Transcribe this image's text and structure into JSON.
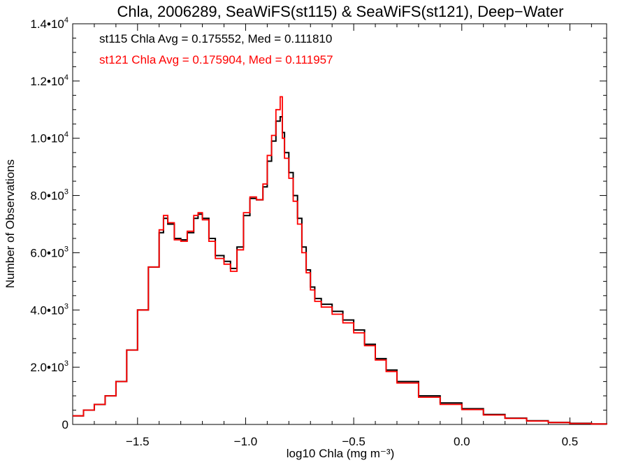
{
  "chart_data": {
    "type": "line",
    "title": "Chla, 2006289, SeaWiFS(st115) & SeaWiFS(st121), Deep−Water",
    "xlabel": "log10 Chla (mg m⁻³)",
    "ylabel": "Number of Observations",
    "xlim": [
      -1.8,
      0.67
    ],
    "ylim": [
      0,
      14000
    ],
    "x_ticks": [
      {
        "value": -1.5,
        "label": "−1.5"
      },
      {
        "value": -1.0,
        "label": "−1.0"
      },
      {
        "value": -0.5,
        "label": "−0.5"
      },
      {
        "value": 0.0,
        "label": "0.0"
      },
      {
        "value": 0.5,
        "label": "0.5"
      }
    ],
    "y_ticks": [
      {
        "value": 0,
        "mant": "0",
        "exp": ""
      },
      {
        "value": 2000,
        "mant": "2.0•10",
        "exp": "3"
      },
      {
        "value": 4000,
        "mant": "4.0•10",
        "exp": "3"
      },
      {
        "value": 6000,
        "mant": "6.0•10",
        "exp": "3"
      },
      {
        "value": 8000,
        "mant": "8.0•10",
        "exp": "3"
      },
      {
        "value": 10000,
        "mant": "1.0•10",
        "exp": "4"
      },
      {
        "value": 12000,
        "mant": "1.2•10",
        "exp": "4"
      },
      {
        "value": 14000,
        "mant": "1.4•10",
        "exp": "4"
      }
    ],
    "annotations": [
      {
        "text": "st115 Chla Avg = 0.175552, Med = 0.111810",
        "color": "#000000"
      },
      {
        "text": "st121 Chla Avg = 0.175904, Med = 0.111957",
        "color": "#ff0000"
      }
    ],
    "series": [
      {
        "color": "#000000",
        "style": "step",
        "x": [
          -1.8,
          -1.75,
          -1.7,
          -1.65,
          -1.6,
          -1.55,
          -1.5,
          -1.45,
          -1.4,
          -1.38,
          -1.36,
          -1.33,
          -1.3,
          -1.27,
          -1.24,
          -1.22,
          -1.2,
          -1.17,
          -1.14,
          -1.1,
          -1.07,
          -1.04,
          -1.01,
          -0.98,
          -0.95,
          -0.92,
          -0.9,
          -0.88,
          -0.86,
          -0.84,
          -0.83,
          -0.82,
          -0.8,
          -0.78,
          -0.76,
          -0.74,
          -0.72,
          -0.7,
          -0.68,
          -0.65,
          -0.6,
          -0.55,
          -0.5,
          -0.45,
          -0.4,
          -0.35,
          -0.3,
          -0.2,
          -0.1,
          0.0,
          0.1,
          0.2,
          0.3,
          0.4,
          0.5,
          0.6,
          0.67
        ],
        "y": [
          300,
          500,
          700,
          1000,
          1500,
          2600,
          4000,
          5500,
          6700,
          7200,
          7000,
          6500,
          6450,
          6700,
          7200,
          7350,
          7200,
          6500,
          5900,
          5700,
          5450,
          6200,
          7300,
          7900,
          7850,
          8300,
          9200,
          9900,
          10600,
          10750,
          10200,
          9500,
          8800,
          8000,
          7200,
          6200,
          5400,
          4800,
          4400,
          4200,
          3950,
          3650,
          3300,
          2800,
          2300,
          1900,
          1500,
          1000,
          750,
          550,
          350,
          220,
          130,
          70,
          40,
          20,
          10
        ]
      },
      {
        "color": "#ff0000",
        "style": "step",
        "x": [
          -1.8,
          -1.75,
          -1.7,
          -1.65,
          -1.6,
          -1.55,
          -1.5,
          -1.45,
          -1.4,
          -1.38,
          -1.36,
          -1.33,
          -1.3,
          -1.27,
          -1.24,
          -1.22,
          -1.2,
          -1.17,
          -1.14,
          -1.1,
          -1.07,
          -1.04,
          -1.01,
          -0.98,
          -0.95,
          -0.92,
          -0.9,
          -0.88,
          -0.86,
          -0.84,
          -0.83,
          -0.82,
          -0.8,
          -0.78,
          -0.76,
          -0.74,
          -0.72,
          -0.7,
          -0.68,
          -0.65,
          -0.6,
          -0.55,
          -0.5,
          -0.45,
          -0.4,
          -0.35,
          -0.3,
          -0.2,
          -0.1,
          0.0,
          0.1,
          0.2,
          0.3,
          0.4,
          0.5,
          0.6,
          0.67
        ],
        "y": [
          300,
          500,
          700,
          1000,
          1500,
          2600,
          4000,
          5500,
          6800,
          7300,
          7050,
          6450,
          6400,
          6750,
          7300,
          7400,
          7150,
          6400,
          5800,
          5600,
          5350,
          6100,
          7400,
          7950,
          7850,
          8400,
          9400,
          10100,
          11000,
          11450,
          10000,
          9300,
          8600,
          7800,
          7000,
          6000,
          5300,
          4700,
          4300,
          4100,
          3850,
          3550,
          3200,
          2750,
          2250,
          1850,
          1450,
          950,
          700,
          520,
          330,
          210,
          120,
          65,
          35,
          18,
          8
        ]
      }
    ]
  }
}
